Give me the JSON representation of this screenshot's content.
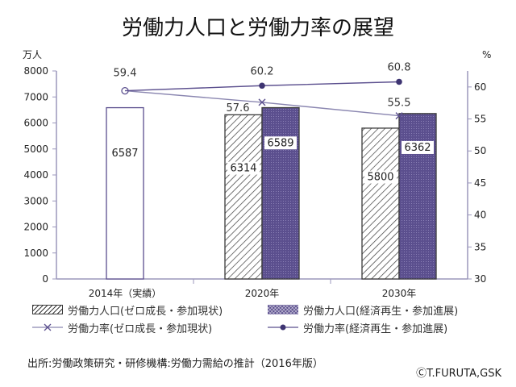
{
  "title": "労働力人口と労働力率の展望",
  "chart_data": {
    "type": "bar",
    "categories": [
      "2014年（実績）",
      "2020年",
      "2030年"
    ],
    "left_axis": {
      "unit": "万人",
      "ticks": [
        "0",
        "1000",
        "2000",
        "3000",
        "4000",
        "5000",
        "6000",
        "7000",
        "8000"
      ],
      "range": [
        0,
        8000
      ]
    },
    "right_axis": {
      "unit": "%",
      "ticks": [
        "30",
        "35",
        "40",
        "45",
        "50",
        "55",
        "60"
      ],
      "range": [
        30,
        62.5
      ]
    },
    "bar_series": [
      {
        "name": "労働力人口(ゼロ成長・参加現状)",
        "values": [
          6587,
          6314,
          5800
        ]
      },
      {
        "name": "労働力人口(経済再生・参加進展)",
        "values": [
          null,
          6589,
          6362
        ]
      }
    ],
    "line_series": [
      {
        "name": "労働力率(ゼロ成長・参加現状)",
        "values": [
          59.4,
          57.6,
          55.5
        ]
      },
      {
        "name": "労働力率(経済再生・参加進展)",
        "values": [
          59.4,
          60.2,
          60.8
        ]
      }
    ],
    "bar_labels": [
      "6587",
      "6314",
      "5800",
      "6589",
      "6362"
    ],
    "line_labels": [
      "59.4",
      "57.6",
      "55.5",
      "60.2",
      "60.8"
    ],
    "grid": false,
    "legend_position": "bottom",
    "colors": {
      "axis": "#9b97bc",
      "dark": "#5b4f8e",
      "hatch": "#3a3a3a"
    }
  },
  "legend": {
    "item1": "労働力人口(ゼロ成長・参加現状)",
    "item2": "労働力人口(経済再生・参加進展)",
    "item3": "労働力率(ゼロ成長・参加現状)",
    "item4": "労働力率(経済再生・参加進展)"
  },
  "source": "出所:労働政策研究・研修機構:労働力需給の推計（2016年版）",
  "copyright": "ⒸT.FURUTA,GSK"
}
